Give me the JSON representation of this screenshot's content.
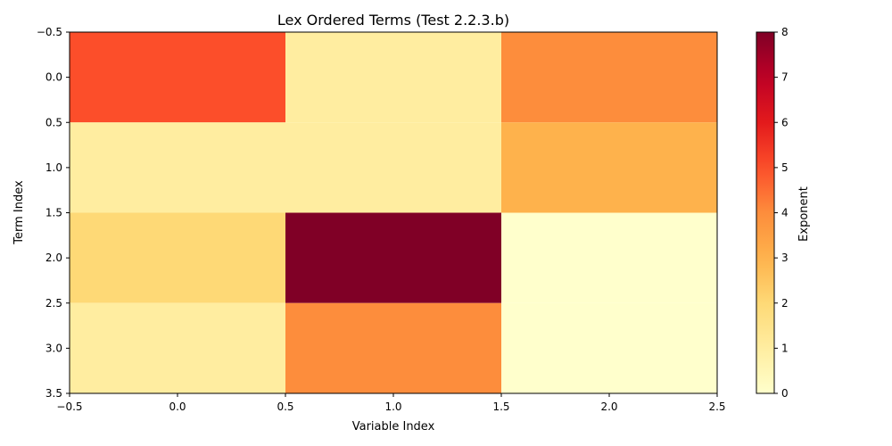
{
  "chart_data": {
    "type": "heatmap",
    "title": "Lex Ordered Terms (Test 2.2.3.b)",
    "xlabel": "Variable Index",
    "ylabel": "Term Index",
    "xlim": [
      -0.5,
      2.5
    ],
    "ylim": [
      3.5,
      -0.5
    ],
    "x_ticks": [
      "-0.5",
      "0.0",
      "0.5",
      "1.0",
      "1.5",
      "2.0",
      "2.5"
    ],
    "y_ticks": [
      "-0.5",
      "0.0",
      "0.5",
      "1.0",
      "1.5",
      "2.0",
      "2.5",
      "3.0",
      "3.5"
    ],
    "values": [
      [
        5,
        1,
        4
      ],
      [
        1,
        1,
        3
      ],
      [
        2,
        8,
        0
      ],
      [
        1,
        4,
        0
      ]
    ],
    "colorbar": {
      "label": "Exponent",
      "range": [
        0,
        8
      ],
      "ticks": [
        "0",
        "1",
        "2",
        "3",
        "4",
        "5",
        "6",
        "7",
        "8"
      ],
      "colormap": "YlOrRd"
    },
    "grid": false
  }
}
